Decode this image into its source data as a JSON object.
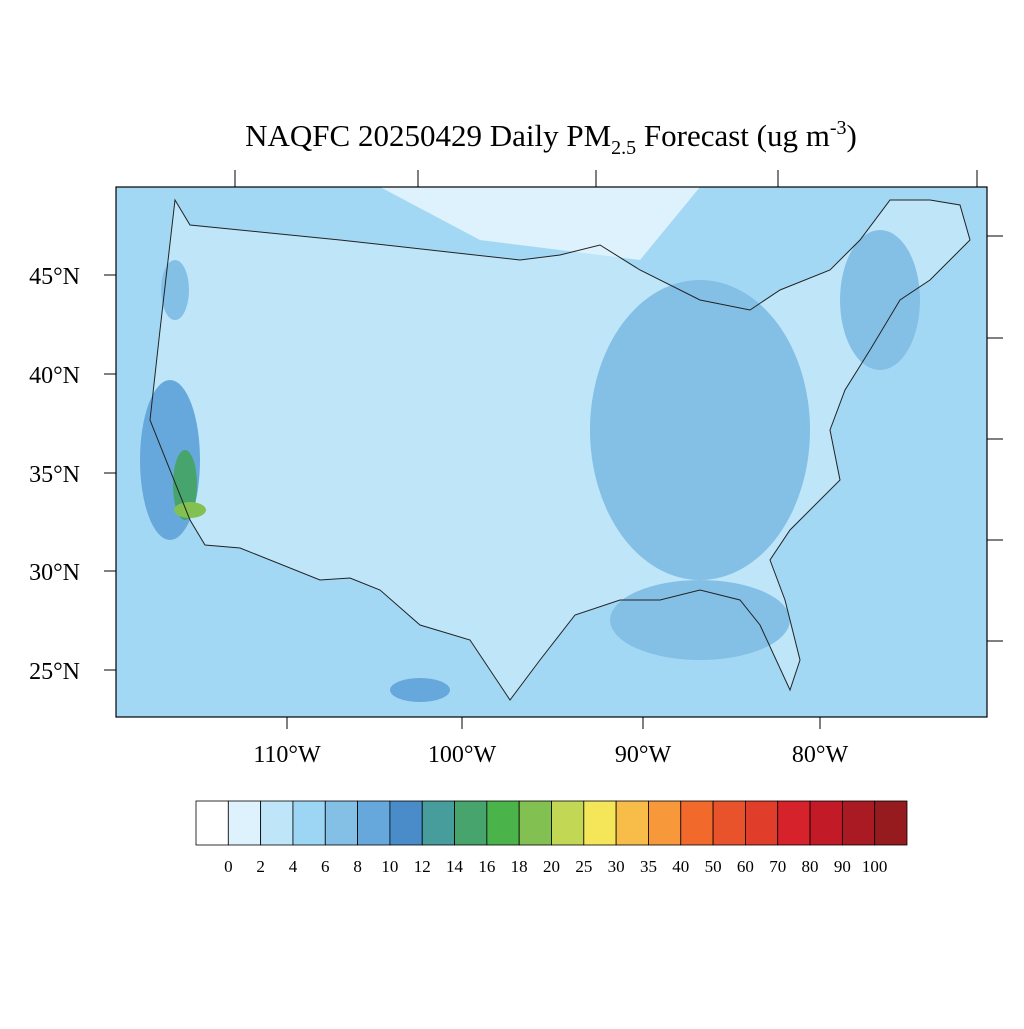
{
  "map": {
    "title_parts": [
      "NAQFC 20250429 Daily PM",
      "2.5",
      " Forecast (ug m",
      "-3",
      ")"
    ],
    "lat_labels": [
      "45°N",
      "40°N",
      "35°N",
      "30°N",
      "25°N"
    ],
    "lon_labels": [
      "110°W",
      "100°W",
      "90°W",
      "80°W"
    ]
  },
  "colorbar": {
    "colors": [
      "#ffffff",
      "#ddf2fc",
      "#bee6f8",
      "#9dd6f4",
      "#84bfe6",
      "#67a8dc",
      "#4a8cca",
      "#479c9c",
      "#46a46c",
      "#4ab34a",
      "#82c151",
      "#c2d855",
      "#f5e659",
      "#f8bd48",
      "#f7993b",
      "#f2692c",
      "#e8532b",
      "#e03d2a",
      "#d6222a",
      "#c21b27",
      "#a91a22",
      "#951b1e"
    ],
    "levels": [
      0,
      2,
      4,
      6,
      8,
      10,
      12,
      14,
      16,
      18,
      20,
      25,
      30,
      35,
      40,
      50,
      60,
      70,
      80,
      90,
      100
    ]
  }
}
